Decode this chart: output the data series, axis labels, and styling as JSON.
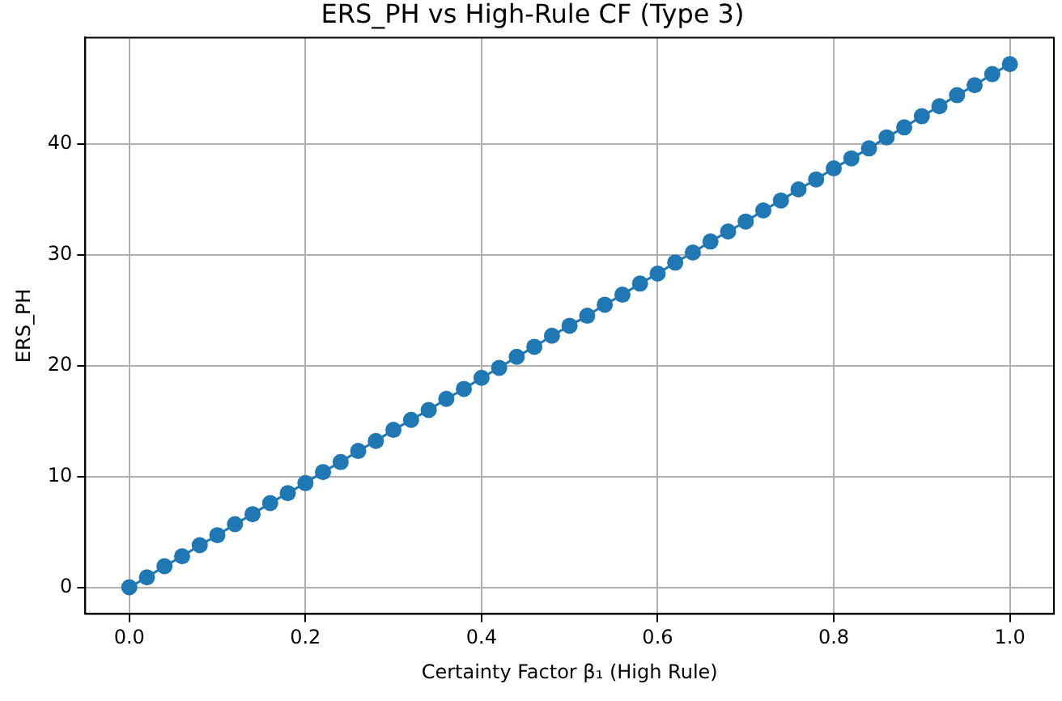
{
  "chart_data": {
    "type": "line",
    "title": "ERS_PH vs High-Rule CF (Type 3)",
    "xlabel": "Certainty Factor β₁ (High Rule)",
    "ylabel": "ERS_PH",
    "x": [
      0,
      0.02,
      0.04,
      0.06,
      0.08,
      0.1,
      0.12,
      0.14,
      0.16,
      0.18,
      0.2,
      0.22,
      0.24,
      0.26,
      0.28,
      0.3,
      0.32,
      0.34,
      0.36,
      0.38,
      0.4,
      0.42,
      0.44,
      0.46,
      0.48,
      0.5,
      0.52,
      0.54,
      0.56,
      0.58,
      0.6,
      0.62,
      0.64,
      0.66,
      0.68,
      0.7,
      0.72,
      0.74,
      0.76,
      0.78,
      0.8,
      0.82,
      0.84,
      0.86,
      0.88,
      0.9,
      0.92,
      0.94,
      0.96,
      0.98,
      1.0
    ],
    "series": [
      {
        "color": "#1f77b4",
        "values": [
          0.0,
          0.9,
          1.9,
          2.8,
          3.8,
          4.7,
          5.7,
          6.6,
          7.6,
          8.5,
          9.4,
          10.4,
          11.3,
          12.3,
          13.2,
          14.2,
          15.1,
          16.0,
          17.0,
          17.9,
          18.9,
          19.8,
          20.8,
          21.7,
          22.7,
          23.6,
          24.5,
          25.5,
          26.4,
          27.4,
          28.3,
          29.3,
          30.2,
          31.2,
          32.1,
          33.0,
          34.0,
          34.9,
          35.9,
          36.8,
          37.8,
          38.7,
          39.6,
          40.6,
          41.5,
          42.5,
          43.4,
          44.4,
          45.3,
          46.3,
          47.2
        ]
      }
    ],
    "xlim": [
      -0.05,
      1.05
    ],
    "ylim": [
      -2.4,
      49.6
    ],
    "xticks": [
      {
        "value": 0,
        "label": "0.0"
      },
      {
        "value": 0.2,
        "label": "0.2"
      },
      {
        "value": 0.4,
        "label": "0.4"
      },
      {
        "value": 0.6,
        "label": "0.6"
      },
      {
        "value": 0.8,
        "label": "0.8"
      },
      {
        "value": 1.0,
        "label": "1.0"
      }
    ],
    "yticks": [
      0,
      10,
      20,
      30,
      40
    ],
    "grid": true,
    "marker": "circle",
    "line_style": "solid"
  }
}
